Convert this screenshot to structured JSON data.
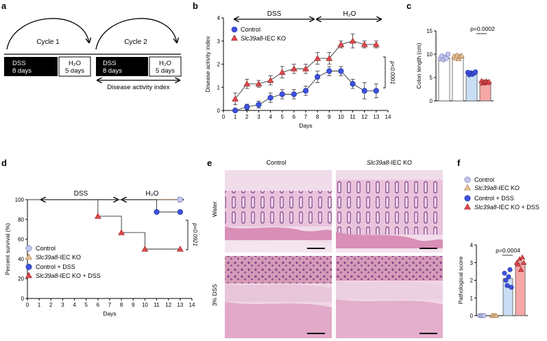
{
  "panels": {
    "a": {
      "letter": "a",
      "cycle1": "Cycle 1",
      "cycle2": "Cycle 2",
      "dss_label_1": "DSS",
      "dss_days_1": "8 days",
      "h2o_label_1": "H₂O",
      "h2o_days_1": "5 days",
      "dss_label_2": "DSS",
      "dss_days_2": "8 days",
      "h2o_label_2": "H₂O",
      "h2o_days_2": "5 days",
      "dai_label": "Disease activity index"
    },
    "b": {
      "letter": "b",
      "dss": "DSS",
      "h2o": "H₂O",
      "pvalue": "p<0.0001"
    },
    "c": {
      "letter": "c",
      "pvalue": "p=0.0002"
    },
    "d": {
      "letter": "d",
      "dss": "DSS",
      "h2o": "H₂O",
      "pvalue": "p=0.0921"
    },
    "e": {
      "letter": "e",
      "col1": "Control",
      "col2_italic": "Slc39a8",
      "col2_rest": "-IEC KO",
      "row1": "Water",
      "row2": "3% DSS"
    },
    "f": {
      "letter": "f",
      "pvalue": "p=0.0004"
    }
  },
  "legend_bf": {
    "control": "Control",
    "ko_italic": "Slc39a8",
    "ko_rest": "-IEC KO",
    "control_dss": "Control + DSS",
    "ko_dss_rest": "-IEC KO + DSS"
  },
  "colors": {
    "control": "#c3c6ef",
    "ko": "#e7bf94",
    "control_dss": "#3d51e0",
    "ko_dss": "#e0474c",
    "control_dss_bar": "#c9def5",
    "ko_dss_bar": "#f5a8a6"
  },
  "chart_data": [
    {
      "panel": "b",
      "type": "line",
      "xlabel": "Days",
      "ylabel": "Disease activity index",
      "xlim": [
        0,
        14
      ],
      "ylim": [
        0,
        4
      ],
      "xticks": [
        0,
        1,
        2,
        3,
        4,
        5,
        6,
        7,
        8,
        9,
        10,
        11,
        12,
        13,
        14
      ],
      "yticks": [
        0,
        1,
        2,
        3,
        4
      ],
      "x": [
        1,
        2,
        3,
        4,
        5,
        6,
        7,
        8,
        9,
        10,
        11,
        12,
        13
      ],
      "series": [
        {
          "name": "Control",
          "values": [
            0.0,
            0.15,
            0.25,
            0.55,
            0.7,
            0.7,
            0.85,
            1.45,
            1.7,
            1.7,
            1.15,
            0.85,
            0.85
          ],
          "err": [
            0.05,
            0.12,
            0.15,
            0.2,
            0.2,
            0.2,
            0.2,
            0.25,
            0.2,
            0.2,
            0.2,
            0.35,
            0.3
          ]
        },
        {
          "name": "Slc39a8-IEC KO",
          "values": [
            0.5,
            1.15,
            1.15,
            1.3,
            1.65,
            1.8,
            1.8,
            2.25,
            2.25,
            2.85,
            3.0,
            2.85,
            2.85
          ],
          "err": [
            0.25,
            0.2,
            0.15,
            0.2,
            0.25,
            0.2,
            0.2,
            0.25,
            0.25,
            0.15,
            0.3,
            0.15,
            0.15
          ]
        }
      ]
    },
    {
      "panel": "c",
      "type": "bar",
      "ylabel": "Colon length (cm)",
      "ylim": [
        0,
        15
      ],
      "yticks": [
        0,
        5,
        10,
        15
      ],
      "categories": [
        "Control",
        "Slc39a8-IEC KO",
        "Control + DSS",
        "Slc39a8-IEC KO + DSS"
      ],
      "values": [
        9.2,
        9.4,
        5.8,
        4.0
      ],
      "points": [
        [
          9.0,
          9.6,
          8.8,
          9.3,
          9.1,
          10.0
        ],
        [
          9.6,
          9.2,
          9.8,
          9.0,
          9.5,
          9.7
        ],
        [
          6.1,
          5.6,
          6.0,
          5.7,
          5.9,
          6.2
        ],
        [
          4.3,
          3.8,
          4.0,
          4.2,
          3.9,
          4.1
        ]
      ]
    },
    {
      "panel": "d",
      "type": "line",
      "xlabel": "Days",
      "ylabel": "Percent survival (%)",
      "xlim": [
        0,
        14
      ],
      "ylim": [
        0,
        100
      ],
      "xticks": [
        0,
        1,
        2,
        3,
        4,
        5,
        6,
        7,
        8,
        9,
        10,
        11,
        12,
        13,
        14
      ],
      "yticks": [
        0,
        20,
        40,
        60,
        80,
        100
      ],
      "series": [
        {
          "name": "Control",
          "x": [
            0,
            13
          ],
          "values": [
            100,
            100
          ]
        },
        {
          "name": "Slc39a8-IEC KO",
          "x": [
            0,
            13
          ],
          "values": [
            100,
            100
          ]
        },
        {
          "name": "Control + DSS",
          "x": [
            0,
            11,
            11,
            13
          ],
          "values": [
            100,
            100,
            87.5,
            87.5
          ],
          "markers_x": [
            11,
            13
          ],
          "markers_y": [
            87.5,
            87.5
          ]
        },
        {
          "name": "Slc39a8-IEC KO + DSS",
          "x": [
            0,
            6,
            6,
            8,
            8,
            10,
            10,
            13
          ],
          "values": [
            100,
            100,
            83.3,
            83.3,
            66.7,
            66.7,
            50,
            50
          ],
          "markers_x": [
            6,
            8,
            10,
            13
          ],
          "markers_y": [
            83.3,
            66.7,
            50,
            50
          ]
        }
      ]
    },
    {
      "panel": "f",
      "type": "bar",
      "ylabel": "Pathological score",
      "ylim": [
        0,
        4
      ],
      "yticks": [
        0,
        1,
        2,
        3,
        4
      ],
      "categories": [
        "Control",
        "Slc39a8-IEC KO",
        "Control + DSS",
        "Slc39a8-IEC KO + DSS"
      ],
      "values": [
        0,
        0,
        2.1,
        3.0
      ],
      "points": [
        [
          0,
          0,
          0,
          0
        ],
        [
          0,
          0,
          0,
          0
        ],
        [
          2.4,
          2.0,
          1.7,
          2.2,
          2.6,
          1.6
        ],
        [
          3.0,
          2.9,
          3.2,
          2.6,
          3.3,
          3.0
        ]
      ]
    }
  ]
}
